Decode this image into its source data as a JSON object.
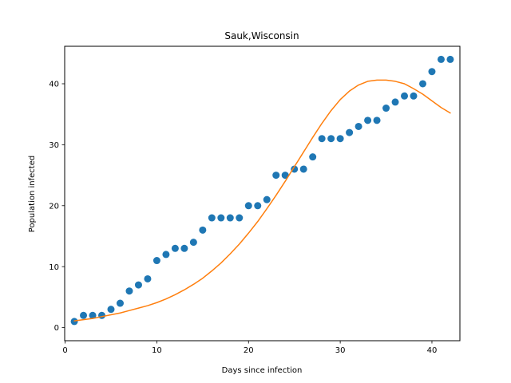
{
  "chart_data": {
    "type": "scatter",
    "title": "Sauk,Wisconsin",
    "xlabel": "Days since infection",
    "ylabel": "Population infected",
    "xlim": [
      -0.05,
      43.05
    ],
    "ylim": [
      -2.15,
      46.15
    ],
    "xticks": [
      0,
      10,
      20,
      30,
      40
    ],
    "yticks": [
      0,
      10,
      20,
      30,
      40
    ],
    "grid": false,
    "series": [
      {
        "kind": "scatter",
        "color": "#1f77b4",
        "x": [
          1,
          2,
          3,
          4,
          5,
          6,
          7,
          8,
          9,
          10,
          11,
          12,
          13,
          14,
          15,
          16,
          17,
          18,
          19,
          20,
          21,
          22,
          23,
          24,
          25,
          26,
          27,
          28,
          29,
          30,
          31,
          32,
          33,
          34,
          35,
          36,
          37,
          38,
          39,
          40,
          41,
          42
        ],
        "y": [
          1,
          2,
          2,
          2,
          3,
          4,
          6,
          7,
          8,
          11,
          12,
          13,
          13,
          14,
          16,
          18,
          18,
          18,
          18,
          20,
          20,
          21,
          25,
          25,
          26,
          26,
          28,
          31,
          31,
          31,
          32,
          33,
          34,
          34,
          36,
          37,
          38,
          38,
          40,
          42,
          44,
          44
        ]
      },
      {
        "kind": "line",
        "color": "#ff7f0e",
        "x": [
          1,
          2,
          3,
          4,
          5,
          6,
          7,
          8,
          9,
          10,
          11,
          12,
          13,
          14,
          15,
          16,
          17,
          18,
          19,
          20,
          21,
          22,
          23,
          24,
          25,
          26,
          27,
          28,
          29,
          30,
          31,
          32,
          33,
          34,
          35,
          36,
          37,
          38,
          39,
          40,
          41,
          42
        ],
        "y": [
          1.1,
          1.3,
          1.5,
          1.8,
          2.1,
          2.4,
          2.8,
          3.2,
          3.6,
          4.1,
          4.7,
          5.4,
          6.2,
          7.1,
          8.1,
          9.3,
          10.6,
          12.1,
          13.7,
          15.5,
          17.4,
          19.5,
          21.7,
          24.0,
          26.4,
          28.8,
          31.2,
          33.5,
          35.6,
          37.4,
          38.8,
          39.8,
          40.4,
          40.6,
          40.6,
          40.4,
          40.0,
          39.2,
          38.3,
          37.2,
          36.1,
          35.2
        ]
      }
    ]
  }
}
